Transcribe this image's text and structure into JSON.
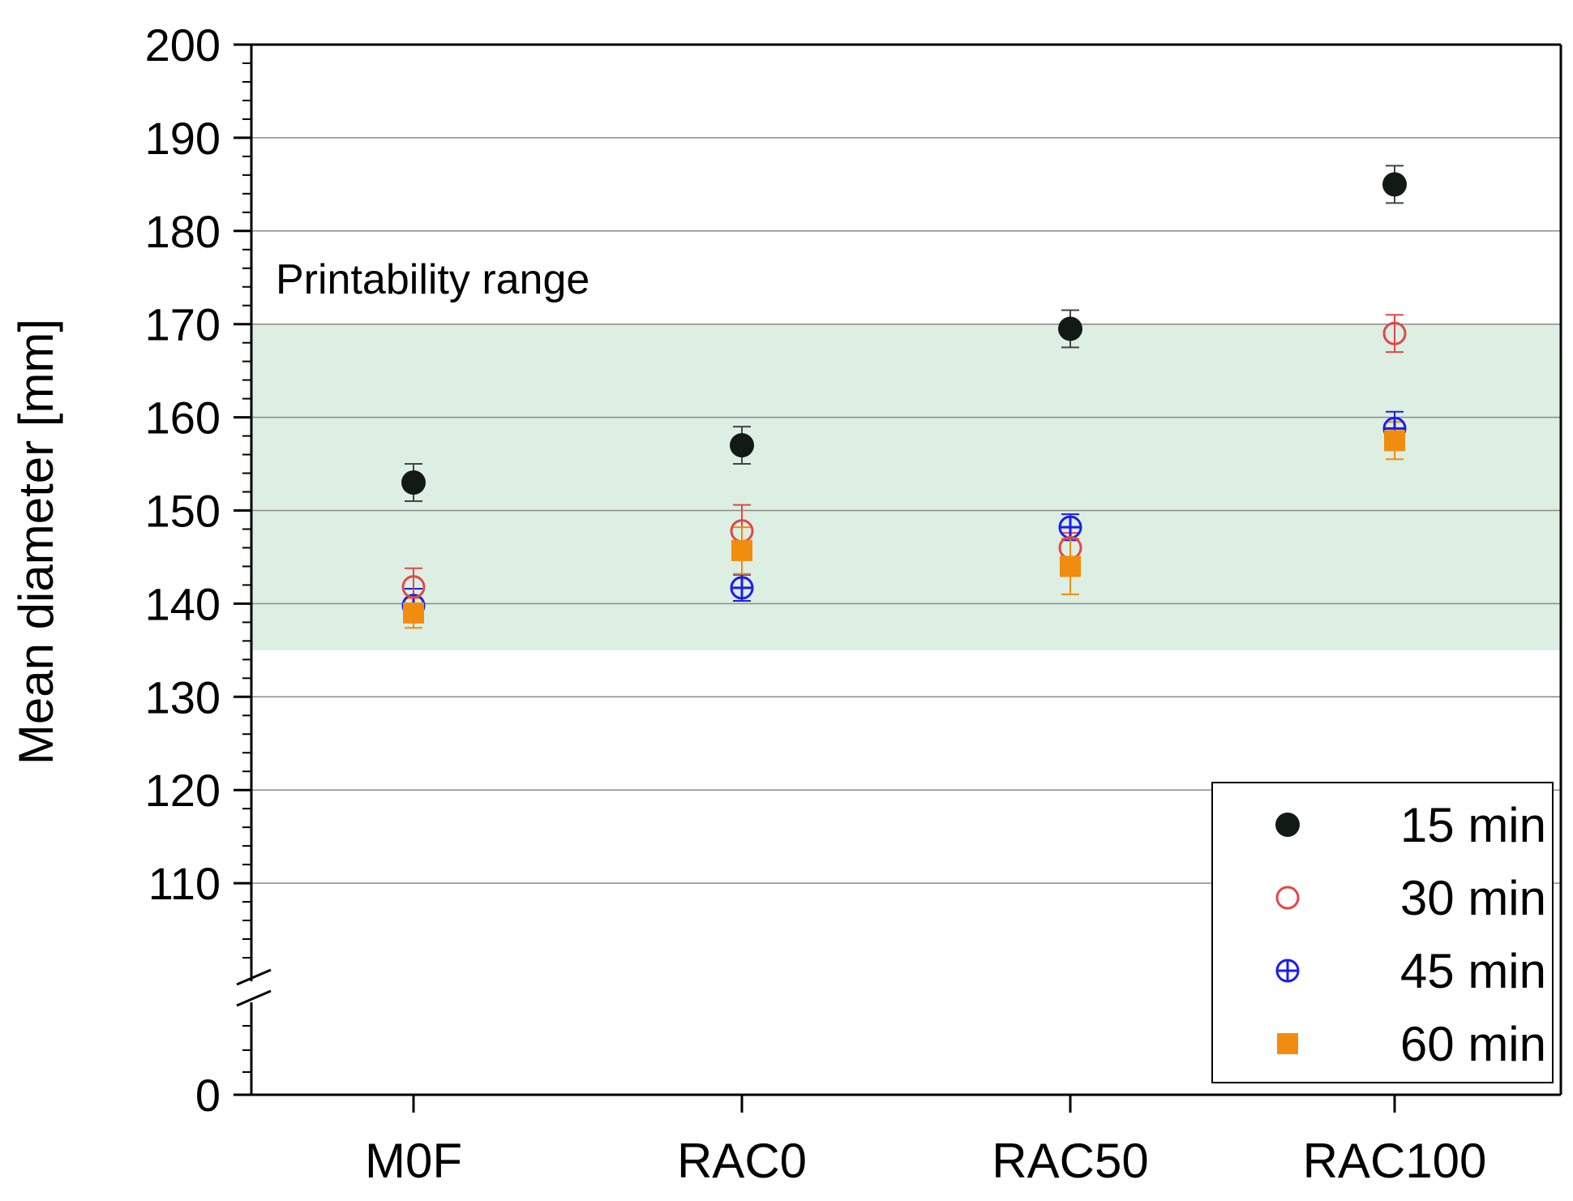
{
  "chart_data": {
    "type": "scatter",
    "title": "",
    "xlabel": "",
    "ylabel": "Mean diameter [mm]",
    "categories": [
      "M0F",
      "RAC0",
      "RAC50",
      "RAC100"
    ],
    "ylim": [
      0,
      200
    ],
    "axis_break": {
      "from": 0,
      "to": 100
    },
    "y_ticks": [
      0,
      110,
      120,
      130,
      140,
      150,
      160,
      170,
      180,
      190,
      200
    ],
    "y_tick_labels": [
      "0",
      "110",
      "120",
      "130",
      "140",
      "150",
      "160",
      "170",
      "180",
      "190",
      "200"
    ],
    "grid": true,
    "band": {
      "label": "Printability range",
      "from": 135,
      "to": 170,
      "color": "#dcefe2"
    },
    "legend_position": "bottom-right",
    "series": [
      {
        "name": "15 min",
        "marker": "filled-circle",
        "color": "#111a14",
        "values": [
          153,
          157,
          169.5,
          185
        ],
        "errors": [
          2,
          2,
          2,
          2
        ]
      },
      {
        "name": "30 min",
        "marker": "open-circle",
        "color": "#e04848",
        "values": [
          141.8,
          147.8,
          146,
          169
        ],
        "errors": [
          2,
          2.8,
          1.6,
          2
        ]
      },
      {
        "name": "45 min",
        "marker": "crossed-circle",
        "color": "#1c1cf0",
        "values": [
          139.8,
          141.7,
          148.2,
          158.8
        ],
        "errors": [
          1.8,
          1.4,
          1.4,
          1.8
        ]
      },
      {
        "name": "60 min",
        "marker": "square",
        "color": "#f28c0f",
        "values": [
          139,
          145.7,
          144,
          157.5
        ],
        "errors": [
          1.6,
          2.5,
          3,
          2
        ]
      }
    ]
  }
}
